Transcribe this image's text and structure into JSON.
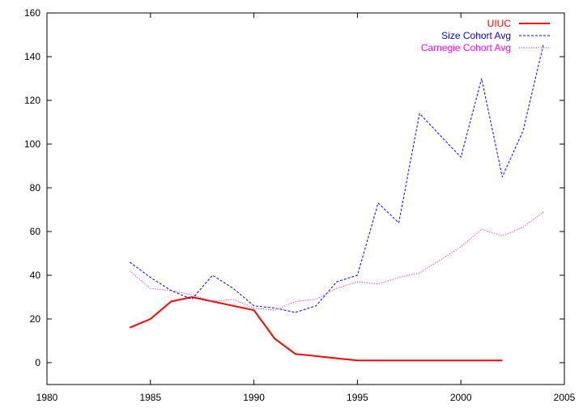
{
  "chart_data": {
    "type": "line",
    "title": "",
    "xlabel": "",
    "ylabel": "",
    "xlim": [
      1980,
      2005
    ],
    "ylim": [
      -10,
      160
    ],
    "x_ticks": [
      1980,
      1985,
      1990,
      1995,
      2000,
      2005
    ],
    "y_ticks": [
      0,
      20,
      40,
      60,
      80,
      100,
      120,
      140,
      160
    ],
    "grid": false,
    "legend_position": "top-right",
    "series": [
      {
        "name": "UIUC",
        "color": "#ff0000",
        "style": "solid",
        "x": [
          1984,
          1985,
          1986,
          1987,
          1988,
          1989,
          1990,
          1991,
          1992,
          1993,
          1994,
          1995,
          1996,
          1997,
          1998,
          1999,
          2000,
          2001,
          2002
        ],
        "y": [
          16,
          20,
          28,
          30,
          28,
          26,
          24,
          11,
          4,
          3,
          2,
          1,
          1,
          1,
          1,
          1,
          1,
          1,
          1
        ]
      },
      {
        "name": "Size Cohort Avg",
        "color": "#0000ff",
        "style": "dashed",
        "x": [
          1984,
          1985,
          1986,
          1987,
          1988,
          1989,
          1990,
          1991,
          1992,
          1993,
          1994,
          1995,
          1996,
          1997,
          1998,
          1999,
          2000,
          2001,
          2002,
          2003,
          2004
        ],
        "y": [
          46,
          39,
          33,
          29,
          40,
          34,
          26,
          25,
          23,
          26,
          37,
          40,
          73,
          64,
          114,
          104,
          94,
          130,
          85,
          106,
          146
        ]
      },
      {
        "name": "Carnegie Cohort Avg",
        "color": "#ff00ff",
        "style": "dotted",
        "x": [
          1984,
          1985,
          1986,
          1987,
          1988,
          1989,
          1990,
          1991,
          1992,
          1993,
          1994,
          1995,
          1996,
          1997,
          1998,
          1999,
          2000,
          2001,
          2002,
          2003,
          2004
        ],
        "y": [
          42,
          34,
          33,
          31,
          28,
          29,
          25,
          24,
          28,
          29,
          34,
          37,
          36,
          39,
          41,
          47,
          53,
          61,
          58,
          62,
          69
        ]
      }
    ]
  }
}
